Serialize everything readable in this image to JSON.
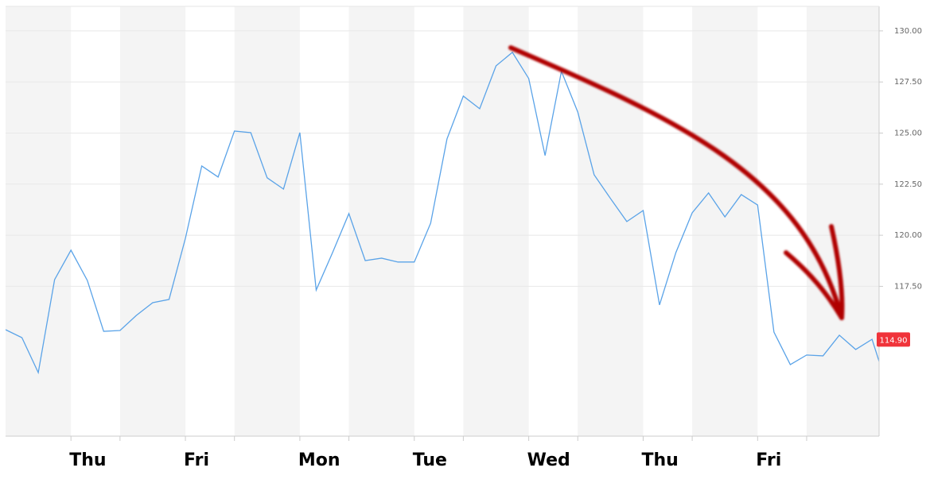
{
  "chart_data": {
    "type": "line",
    "categories": [
      null,
      null,
      null,
      null,
      "Thu",
      null,
      null,
      null,
      null,
      null,
      null,
      "Fri",
      null,
      null,
      null,
      null,
      null,
      null,
      "Mon",
      null,
      null,
      null,
      null,
      null,
      null,
      "Tue",
      null,
      null,
      null,
      null,
      null,
      null,
      "Wed",
      null,
      null,
      null,
      null,
      null,
      null,
      "Thu",
      null,
      null,
      null,
      null,
      null,
      null,
      "Fri",
      null,
      null,
      null,
      null,
      null,
      null,
      null,
      null
    ],
    "series": [
      {
        "color": "#5aa3e8",
        "values": [
          115.38,
          114.99,
          113.28,
          117.83,
          119.27,
          117.79,
          115.3,
          115.34,
          116.08,
          116.7,
          116.86,
          119.85,
          123.39,
          122.85,
          125.1,
          125.02,
          122.81,
          122.26,
          125.02,
          117.32,
          119.15,
          121.06,
          118.76,
          118.88,
          118.69,
          118.69,
          120.59,
          124.71,
          126.81,
          126.19,
          128.29,
          128.95,
          127.67,
          123.9,
          128.02,
          126.03,
          122.96,
          121.8,
          120.67,
          121.21,
          116.59,
          119.15,
          121.1,
          122.07,
          120.9,
          121.99,
          121.48,
          115.26,
          113.67,
          114.14,
          114.1,
          115.11,
          114.41,
          114.91,
          112.4
        ]
      }
    ],
    "ylim": [
      110.17,
      131.2
    ],
    "yticks": [
      {
        "value": 117.5,
        "label": "117.50"
      },
      {
        "value": 120,
        "label": "120.00"
      },
      {
        "value": 122.5,
        "label": "122.50"
      },
      {
        "value": 125,
        "label": "125.00"
      },
      {
        "value": 127.5,
        "label": "127.50"
      },
      {
        "value": 130,
        "label": "130.00"
      }
    ],
    "price_tag": {
      "value": 114.9,
      "label": "114.90",
      "color": "#f0333a"
    },
    "grid": true
  }
}
